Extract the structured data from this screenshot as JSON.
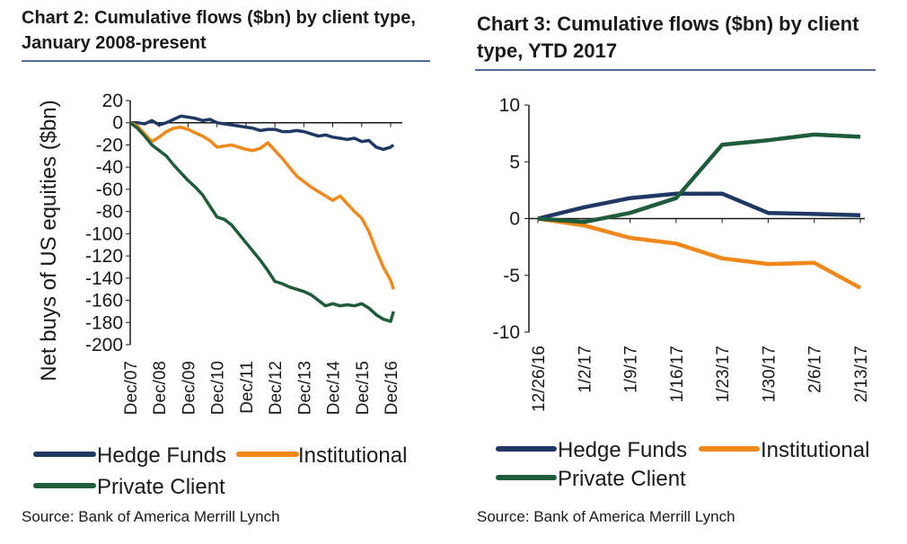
{
  "chart_data": [
    {
      "type": "line",
      "title": "Chart 2: Cumulative flows ($bn) by client type, January 2008-present",
      "title_line1": "Chart 2: Cumulative flows ($bn) by client type,",
      "title_line2": "January 2008-present",
      "ylabel": "Net buys of US equities ($bn)",
      "xlabel": "",
      "ylim": [
        -200,
        20
      ],
      "yticks": [
        "20",
        "0",
        "-20",
        "-40",
        "-60",
        "-80",
        "-100",
        "-120",
        "-140",
        "-160",
        "-180",
        "-200"
      ],
      "ytick_values": [
        20,
        0,
        -20,
        -40,
        -60,
        -80,
        -100,
        -120,
        -140,
        -160,
        -180,
        -200
      ],
      "xlim": [
        0,
        9
      ],
      "categories": [
        "Dec/07",
        "Dec/08",
        "Dec/09",
        "Dec/10",
        "Dec/11",
        "Dec/12",
        "Dec/13",
        "Dec/14",
        "Dec/15",
        "Dec/16"
      ],
      "series": [
        {
          "name": "Hedge Funds",
          "color": "#1f3864",
          "x": [
            0,
            0.25,
            0.5,
            0.75,
            1,
            1.25,
            1.5,
            1.75,
            2,
            2.25,
            2.5,
            2.75,
            3,
            3.25,
            3.5,
            3.75,
            4,
            4.25,
            4.5,
            4.75,
            5,
            5.25,
            5.5,
            5.75,
            6,
            6.25,
            6.5,
            6.75,
            7,
            7.25,
            7.5,
            7.75,
            8,
            8.25,
            8.5,
            8.75,
            9,
            9.1
          ],
          "values": [
            0,
            0,
            -1,
            2,
            -2,
            0,
            3,
            6,
            5,
            4,
            2,
            3,
            0,
            -1,
            -2,
            -3,
            -4,
            -5,
            -7,
            -6,
            -6,
            -8,
            -8,
            -7,
            -8,
            -10,
            -12,
            -11,
            -13,
            -14,
            -15,
            -14,
            -17,
            -16,
            -22,
            -24,
            -22,
            -20
          ]
        },
        {
          "name": "Institutional",
          "color": "#f0881a",
          "x": [
            0,
            0.25,
            0.5,
            0.75,
            1,
            1.25,
            1.5,
            1.75,
            2,
            2.25,
            2.5,
            2.75,
            3,
            3.25,
            3.5,
            3.75,
            4,
            4.25,
            4.5,
            4.75,
            5,
            5.25,
            5.5,
            5.75,
            6,
            6.25,
            6.5,
            6.75,
            7,
            7.25,
            7.5,
            7.75,
            8,
            8.25,
            8.5,
            8.75,
            9,
            9.1
          ],
          "values": [
            0,
            -3,
            -10,
            -17,
            -13,
            -8,
            -5,
            -4,
            -6,
            -9,
            -12,
            -16,
            -22,
            -21,
            -20,
            -22,
            -24,
            -25,
            -23,
            -18,
            -25,
            -32,
            -40,
            -48,
            -53,
            -58,
            -62,
            -66,
            -70,
            -66,
            -73,
            -80,
            -86,
            -98,
            -115,
            -130,
            -142,
            -150
          ]
        },
        {
          "name": "Private Client",
          "color": "#1f5c3c",
          "x": [
            0,
            0.25,
            0.5,
            0.75,
            1,
            1.25,
            1.5,
            1.75,
            2,
            2.25,
            2.5,
            2.75,
            3,
            3.25,
            3.5,
            3.75,
            4,
            4.25,
            4.5,
            4.75,
            5,
            5.25,
            5.5,
            5.75,
            6,
            6.25,
            6.5,
            6.75,
            7,
            7.25,
            7.5,
            7.75,
            8,
            8.25,
            8.5,
            8.75,
            9,
            9.1
          ],
          "values": [
            0,
            -5,
            -12,
            -20,
            -25,
            -30,
            -38,
            -45,
            -52,
            -58,
            -65,
            -75,
            -85,
            -87,
            -92,
            -100,
            -108,
            -116,
            -124,
            -133,
            -143,
            -145,
            -148,
            -150,
            -152,
            -155,
            -160,
            -165,
            -163,
            -165,
            -164,
            -165,
            -163,
            -167,
            -173,
            -177,
            -179,
            -170
          ]
        }
      ],
      "legend": "bottom"
    },
    {
      "type": "line",
      "title": "Chart 3: Cumulative flows ($bn) by client type, YTD 2017",
      "title_line1": "Chart 3: Cumulative flows ($bn) by client",
      "title_line2": "type, YTD 2017",
      "xlabel": "",
      "ylabel": "",
      "ylim": [
        -10,
        10
      ],
      "yticks": [
        "10",
        "5",
        "0",
        "-5",
        "-10"
      ],
      "ytick_values": [
        10,
        5,
        0,
        -5,
        -10
      ],
      "categories": [
        "12/26/16",
        "1/2/17",
        "1/9/17",
        "1/16/17",
        "1/23/17",
        "1/30/17",
        "2/6/17",
        "2/13/17"
      ],
      "series": [
        {
          "name": "Hedge Funds",
          "color": "#1f3864",
          "values": [
            0,
            1.0,
            1.8,
            2.2,
            2.2,
            0.5,
            0.4,
            0.3
          ]
        },
        {
          "name": "Institutional",
          "color": "#f0881a",
          "values": [
            0,
            -0.6,
            -1.7,
            -2.2,
            -3.5,
            -4.0,
            -3.9,
            -6.1
          ]
        },
        {
          "name": "Private Client",
          "color": "#1f5c3c",
          "values": [
            0,
            -0.3,
            0.5,
            1.8,
            6.5,
            6.9,
            7.4,
            7.2
          ]
        }
      ],
      "legend": "bottom"
    }
  ],
  "source_left": "Source: Bank of America Merrill Lynch",
  "source_right": "Source: Bank of America Merrill Lynch"
}
